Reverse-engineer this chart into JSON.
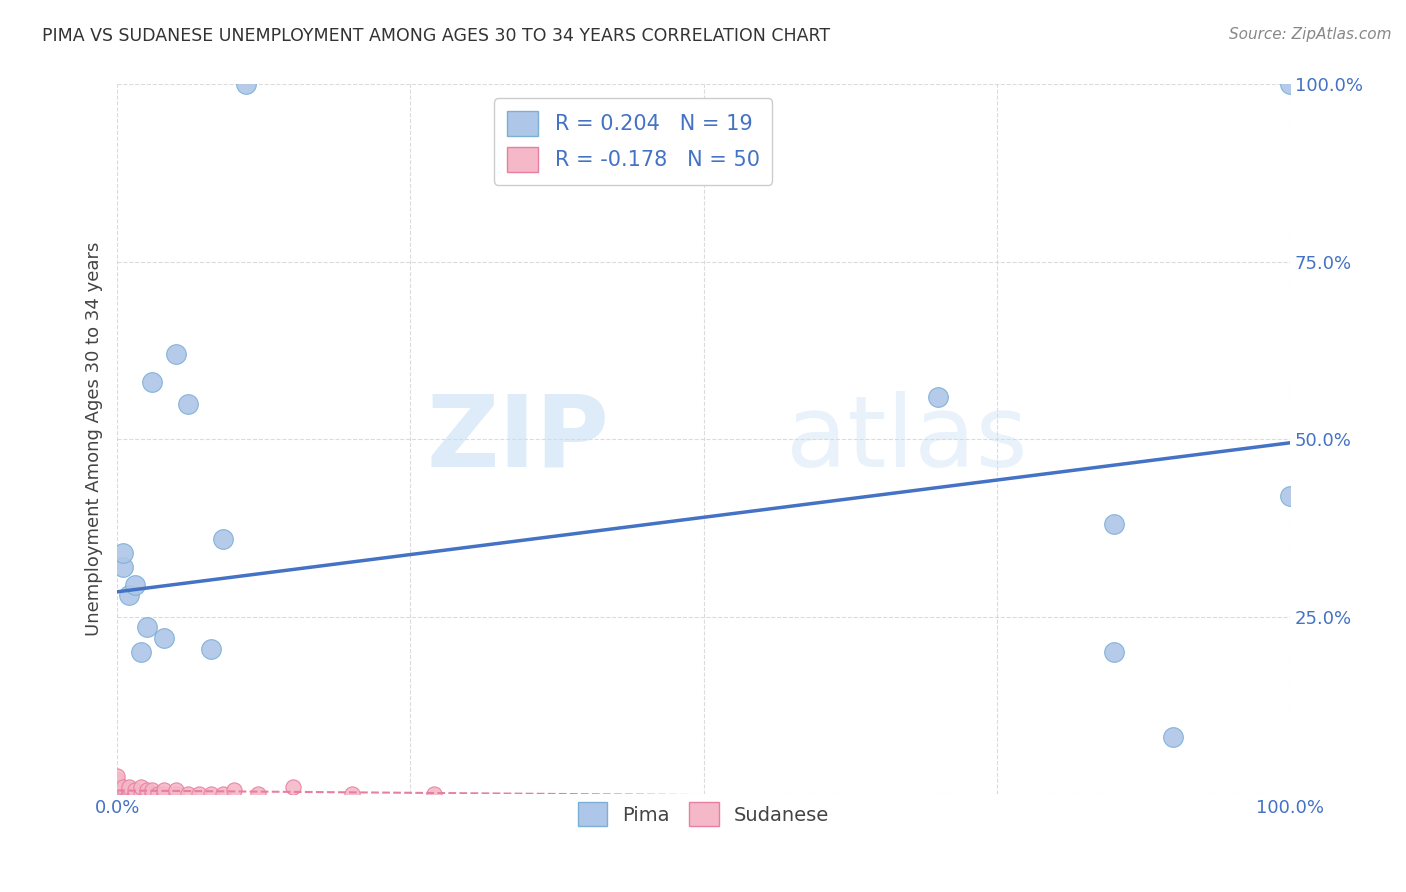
{
  "title": "PIMA VS SUDANESE UNEMPLOYMENT AMONG AGES 30 TO 34 YEARS CORRELATION CHART",
  "source": "Source: ZipAtlas.com",
  "xlabel": "",
  "ylabel": "Unemployment Among Ages 30 to 34 years",
  "xlim": [
    0.0,
    1.0
  ],
  "ylim": [
    0.0,
    1.0
  ],
  "xticks": [
    0.0,
    0.25,
    0.5,
    0.75,
    1.0
  ],
  "yticks": [
    0.0,
    0.25,
    0.5,
    0.75,
    1.0
  ],
  "xtick_labels": [
    "0.0%",
    "",
    "",
    "",
    "100.0%"
  ],
  "ytick_labels_right": [
    "",
    "25.0%",
    "50.0%",
    "75.0%",
    "100.0%"
  ],
  "pima_color": "#aec6e8",
  "pima_edge_color": "#7bafd4",
  "sudanese_color": "#f4b8c8",
  "sudanese_edge_color": "#e87fa0",
  "trend_pima_color": "#4472c4",
  "trend_sudanese_color": "#e87fa0",
  "pima_R": 0.204,
  "pima_N": 19,
  "sudanese_R": -0.178,
  "sudanese_N": 50,
  "watermark_zip": "ZIP",
  "watermark_atlas": "atlas",
  "pima_x": [
    0.005,
    0.005,
    0.01,
    0.015,
    0.02,
    0.025,
    0.03,
    0.04,
    0.05,
    0.06,
    0.08,
    0.09,
    0.11,
    0.7,
    0.85,
    0.85,
    0.9,
    1.0,
    1.0
  ],
  "pima_y": [
    0.32,
    0.34,
    0.28,
    0.295,
    0.2,
    0.235,
    0.58,
    0.22,
    0.62,
    0.55,
    0.205,
    0.36,
    1.0,
    0.56,
    0.38,
    0.2,
    0.08,
    0.42,
    1.0
  ],
  "sudanese_x": [
    0.0,
    0.0,
    0.0,
    0.0,
    0.0,
    0.0,
    0.0,
    0.0,
    0.0,
    0.0,
    0.0,
    0.0,
    0.0,
    0.0,
    0.0,
    0.005,
    0.005,
    0.005,
    0.005,
    0.005,
    0.005,
    0.005,
    0.01,
    0.01,
    0.01,
    0.01,
    0.01,
    0.015,
    0.015,
    0.015,
    0.02,
    0.02,
    0.025,
    0.025,
    0.03,
    0.03,
    0.035,
    0.04,
    0.04,
    0.05,
    0.05,
    0.06,
    0.07,
    0.08,
    0.09,
    0.1,
    0.12,
    0.15,
    0.2,
    0.27
  ],
  "sudanese_y": [
    0.0,
    0.0,
    0.0,
    0.0,
    0.0,
    0.0,
    0.0,
    0.0,
    0.0,
    0.005,
    0.005,
    0.01,
    0.015,
    0.02,
    0.025,
    0.0,
    0.0,
    0.0,
    0.0,
    0.005,
    0.005,
    0.01,
    0.0,
    0.0,
    0.0,
    0.005,
    0.01,
    0.0,
    0.0,
    0.005,
    0.0,
    0.01,
    0.0,
    0.005,
    0.0,
    0.005,
    0.0,
    0.0,
    0.005,
    0.0,
    0.005,
    0.0,
    0.0,
    0.0,
    0.0,
    0.005,
    0.0,
    0.01,
    0.0,
    0.0
  ],
  "marker_size_pima": 200,
  "marker_size_sudanese": 120,
  "pima_trend_x0": 0.0,
  "pima_trend_y0": 0.285,
  "pima_trend_x1": 1.0,
  "pima_trend_y1": 0.495,
  "sudanese_trend_x0": 0.0,
  "sudanese_trend_y0": 0.005,
  "sudanese_trend_x1": 1.0,
  "sudanese_trend_y1": -0.008
}
